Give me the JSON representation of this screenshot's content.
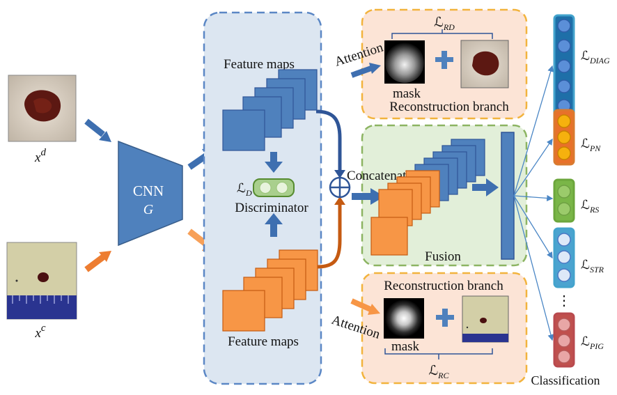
{
  "inputs": {
    "derm": {
      "symbol": "x",
      "superscript": "d"
    },
    "clinic": {
      "symbol": "x",
      "superscript": "c"
    }
  },
  "cnn": {
    "label": "CNN",
    "symbol": "G"
  },
  "feature_maps": {
    "top_label": "Feature maps",
    "bottom_label": "Feature maps"
  },
  "discriminator": {
    "label": "Discriminator",
    "loss_symbol": "ℒ",
    "loss_subscript": "D"
  },
  "fusion_op": {
    "symbol": "⊕",
    "concat_label": "Concatenate",
    "panel_label": "Fusion"
  },
  "reconstruction_top": {
    "loss_symbol": "ℒ",
    "loss_subscript": "RD",
    "attention_label": "Attention",
    "mask_label": "mask",
    "plus": "+",
    "branch_label": "Reconstruction branch"
  },
  "reconstruction_bottom": {
    "loss_symbol": "ℒ",
    "loss_subscript": "RC",
    "attention_label": "Attention",
    "mask_label": "mask",
    "plus": "+",
    "branch_label": "Reconstruction branch"
  },
  "classification": {
    "title": "Classification",
    "ellipsis": "⋮",
    "heads": [
      {
        "loss_symbol": "ℒ",
        "subscript": "DIAG",
        "color": "#43A3CC",
        "node_color": "#5B8FD8",
        "node_edge": "#2F5DA8"
      },
      {
        "loss_symbol": "ℒ",
        "subscript": "PN",
        "color": "#D97A2F",
        "node_color": "#F6B10E",
        "node_edge": "#C98200"
      },
      {
        "loss_symbol": "ℒ",
        "subscript": "RS",
        "color": "#6CA63C",
        "node_color": "#9BCB6B",
        "node_edge": "#6EA043"
      },
      {
        "loss_symbol": "ℒ",
        "subscript": "STR",
        "color": "#43A3CC",
        "node_color": "#DDE9F8",
        "node_edge": "#4C78C4"
      },
      {
        "loss_symbol": "ℒ",
        "subscript": "PIG",
        "color": "#B94A4E",
        "node_color": "#E8A6A6",
        "node_edge": "#B65A5A"
      }
    ]
  },
  "colors": {
    "blue": "#4F81BD",
    "blue_dark": "#2F5597",
    "orange": "#F79646",
    "orange_dark": "#C55A11",
    "panel_blue": "#DCE6F1",
    "panel_green": "#E2EFD9",
    "panel_peach": "#FCE4D6",
    "border_yellow": "#F2B33D",
    "border_green": "#8CB462"
  }
}
